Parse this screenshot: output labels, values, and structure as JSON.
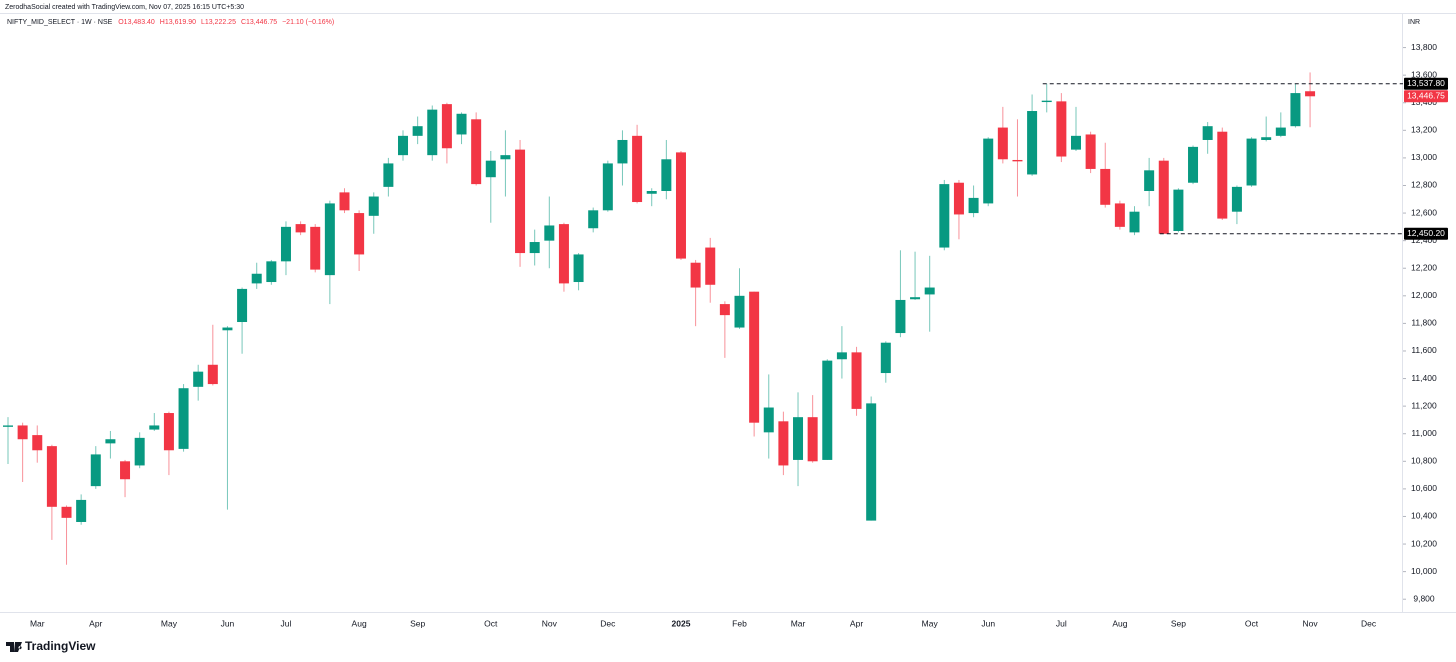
{
  "header": {
    "credit": "ZerodhaSocial created with TradingView.com, Nov 07, 2025 16:15 UTC+5:30",
    "symbol": "NIFTY_MID_SELECT · 1W · NSE",
    "open": "O13,483.40",
    "high": "H13,619.90",
    "low": "L13,222.25",
    "close": "C13,446.75",
    "change": "−21.10 (−0.16%)",
    "currency": "INR",
    "logo": "TradingView"
  },
  "chart_data": {
    "type": "candlestick",
    "categories": [
      null,
      null,
      "Mar",
      null,
      null,
      null,
      "Apr",
      null,
      null,
      null,
      null,
      "May",
      null,
      null,
      null,
      "Jun",
      null,
      null,
      null,
      "Jul",
      null,
      null,
      null,
      null,
      "Aug",
      null,
      null,
      null,
      "Sep",
      null,
      null,
      null,
      null,
      "Oct",
      null,
      null,
      null,
      "Nov",
      null,
      null,
      null,
      "Dec",
      null,
      null,
      null,
      null,
      "2025",
      null,
      null,
      null,
      "Feb",
      null,
      null,
      null,
      "Mar",
      null,
      null,
      null,
      "Apr",
      null,
      null,
      null,
      null,
      "May",
      null,
      null,
      null,
      "Jun",
      null,
      null,
      null,
      null,
      "Jul",
      null,
      null,
      null,
      "Aug",
      null,
      null,
      null,
      "Sep",
      null,
      null,
      null,
      null,
      "Oct",
      null,
      null,
      null,
      "Nov",
      null,
      null,
      null,
      "Dec"
    ],
    "up_color": "#089981",
    "down_color": "#f23645",
    "open": [
      11050,
      11060,
      10990,
      10910,
      10470,
      10360,
      10620,
      10930,
      10800,
      10770,
      11030,
      11150,
      10890,
      11340,
      11500,
      11750,
      11810,
      12090,
      12100,
      12250,
      12520,
      12500,
      12150,
      12750,
      12600,
      12580,
      12790,
      13020,
      13160,
      13020,
      13390,
      13170,
      13280,
      12860,
      12990,
      13060,
      12310,
      12400,
      12520,
      12100,
      12490,
      12620,
      12960,
      13160,
      12740,
      12760,
      13040,
      12240,
      12350,
      11940,
      11770,
      12030,
      11010,
      11090,
      10810,
      11120,
      10810,
      11540,
      11590,
      10370,
      11440,
      11730,
      11975,
      12010,
      12350,
      12820,
      12600,
      12670,
      13220,
      12985,
      12880,
      13405,
      13410,
      13060,
      13170,
      12920,
      12670,
      12460,
      12760,
      12980,
      12470,
      12820,
      13130,
      13190,
      12610,
      12800,
      13130,
      13160,
      13230,
      13483.4,
      null,
      null,
      null,
      null
    ],
    "high": [
      11120,
      11080,
      11060,
      10920,
      10480,
      10560,
      10910,
      11020,
      10810,
      11010,
      11150,
      11160,
      11360,
      11500,
      11790,
      11780,
      12060,
      12240,
      12260,
      12540,
      12540,
      12520,
      12690,
      12780,
      12620,
      12750,
      13000,
      13200,
      13300,
      13380,
      13400,
      13330,
      13330,
      13050,
      13200,
      13130,
      12480,
      12720,
      12530,
      12310,
      12640,
      12980,
      13200,
      13240,
      12780,
      13130,
      13050,
      12260,
      12420,
      11960,
      12200,
      12030,
      11430,
      11160,
      11300,
      11280,
      11540,
      11780,
      11630,
      11270,
      11670,
      12330,
      12320,
      12290,
      12840,
      12840,
      12800,
      13150,
      13370,
      13280,
      13460,
      13537.8,
      13470,
      13370,
      13190,
      13110,
      12690,
      12650,
      13000,
      13000,
      12780,
      13090,
      13260,
      13220,
      12800,
      13150,
      13300,
      13330,
      13538,
      13619.9,
      null,
      null,
      null,
      null
    ],
    "low": [
      10780,
      10650,
      10790,
      10230,
      10050,
      10340,
      10600,
      10820,
      10540,
      10750,
      11020,
      10700,
      10870,
      11240,
      11350,
      10450,
      11580,
      12050,
      12080,
      12150,
      12440,
      12170,
      11940,
      12600,
      12180,
      12450,
      12720,
      12980,
      13100,
      12980,
      12960,
      13100,
      12800,
      12530,
      12720,
      12210,
      12220,
      12200,
      12030,
      12040,
      12460,
      12610,
      12800,
      12670,
      12650,
      12700,
      12260,
      11780,
      11950,
      11550,
      11760,
      10980,
      10820,
      10700,
      10620,
      10790,
      10810,
      11400,
      11130,
      10370,
      11370,
      11700,
      11970,
      11740,
      12330,
      12410,
      12570,
      12650,
      12960,
      12720,
      12870,
      13330,
      12970,
      13050,
      12890,
      12640,
      12480,
      12440,
      12650,
      12450.2,
      12460,
      12810,
      13030,
      12550,
      12520,
      12790,
      13120,
      13150,
      13220,
      13222.25,
      null,
      null,
      null,
      null
    ],
    "close": [
      11060,
      10960,
      10880,
      10470,
      10390,
      10520,
      10850,
      10960,
      10670,
      10970,
      11060,
      10880,
      11330,
      11450,
      11360,
      11770,
      12050,
      12160,
      12250,
      12500,
      12460,
      12190,
      12670,
      12620,
      12300,
      12720,
      12960,
      13160,
      13230,
      13350,
      13070,
      13320,
      12810,
      12980,
      13020,
      12310,
      12390,
      12510,
      12090,
      12300,
      12620,
      12960,
      13130,
      12680,
      12760,
      12990,
      12270,
      12060,
      12080,
      11860,
      12000,
      11080,
      11190,
      10770,
      11120,
      10800,
      11530,
      11590,
      11180,
      11220,
      11660,
      11970,
      11990,
      12060,
      12810,
      12590,
      12710,
      13140,
      12990,
      12975,
      13340,
      13415,
      13010,
      13160,
      12920,
      12660,
      12500,
      12610,
      12910,
      12450,
      12770,
      13080,
      13230,
      12560,
      12790,
      13140,
      13150,
      13220,
      13470,
      13446.75,
      null,
      null,
      null,
      null
    ],
    "ylim": [
      9700,
      14000
    ],
    "yticks": [
      {
        "value": 9800,
        "label": "9,800"
      },
      {
        "value": 10000,
        "label": "10,000"
      },
      {
        "value": 10200,
        "label": "10,200"
      },
      {
        "value": 10400,
        "label": "10,400"
      },
      {
        "value": 10600,
        "label": "10,600"
      },
      {
        "value": 10800,
        "label": "10,800"
      },
      {
        "value": 11000,
        "label": "11,000"
      },
      {
        "value": 11200,
        "label": "11,200"
      },
      {
        "value": 11400,
        "label": "11,400"
      },
      {
        "value": 11600,
        "label": "11,600"
      },
      {
        "value": 11800,
        "label": "11,800"
      },
      {
        "value": 12000,
        "label": "12,000"
      },
      {
        "value": 12200,
        "label": "12,200"
      },
      {
        "value": 12400,
        "label": "12,400"
      },
      {
        "value": 12600,
        "label": "12,600"
      },
      {
        "value": 12800,
        "label": "12,800"
      },
      {
        "value": 13000,
        "label": "13,000"
      },
      {
        "value": 13200,
        "label": "13,200"
      },
      {
        "value": 13400,
        "label": "13,400"
      },
      {
        "value": 13600,
        "label": "13,600"
      },
      {
        "value": 13800,
        "label": "13,800"
      }
    ],
    "price_lines": [
      {
        "value": 13537.8,
        "label": "13,537.80",
        "color": "#000000"
      },
      {
        "value": 12450.2,
        "label": "12,450.20",
        "color": "#000000"
      }
    ],
    "last_price": {
      "value": 13446.75,
      "label": "13,446.75",
      "color": "#f23645"
    }
  }
}
